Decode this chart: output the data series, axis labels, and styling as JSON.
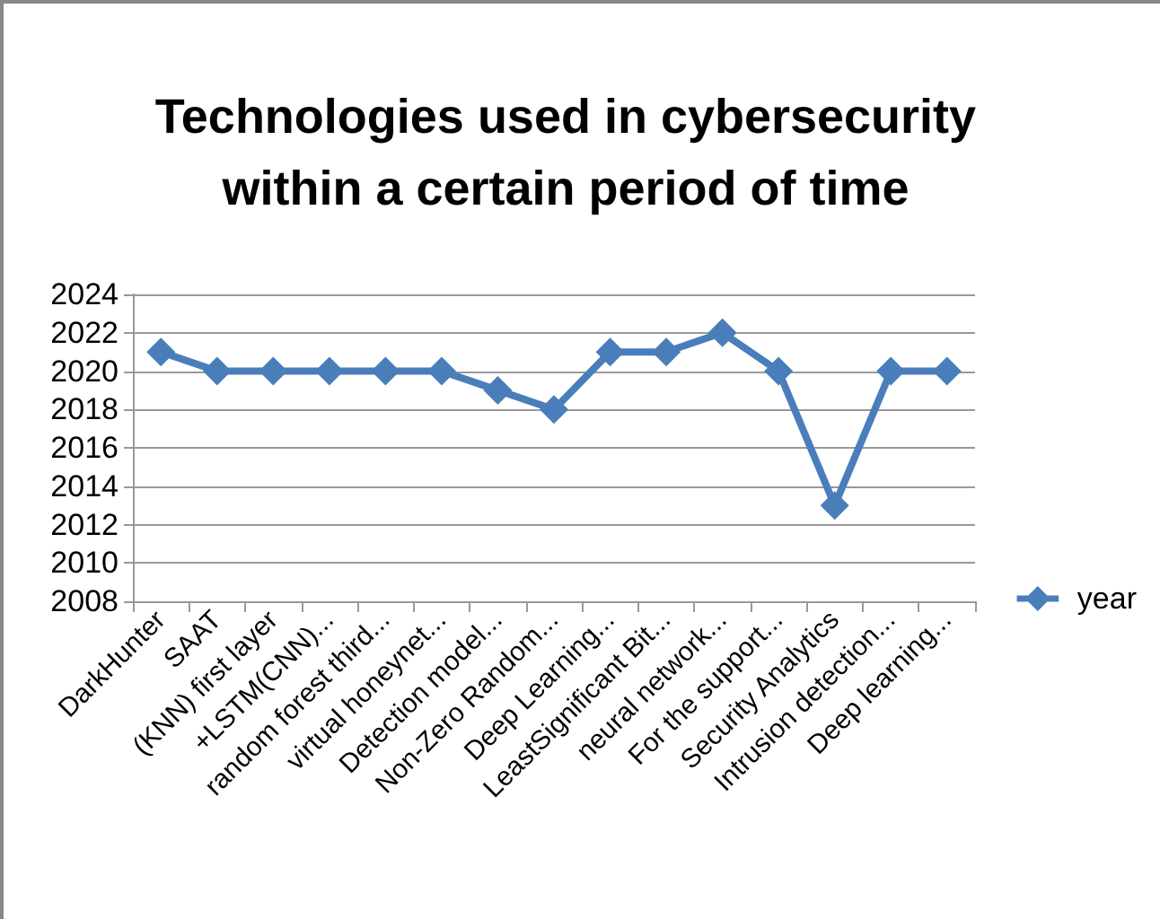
{
  "chart_data": {
    "type": "line",
    "title": "Technologies used in cybersecurity\nwithin a certain period of time",
    "categories": [
      "DarkHunter",
      "SAAT",
      "(KNN) first layer",
      "+LSTM(CNN)...",
      "random forest third...",
      "virtual honeynet...",
      "Detection model...",
      "Non-Zero Random...",
      "Deep Learning...",
      "LeastSignificant Bit...",
      "neural network...",
      "For the support...",
      "Security Analytics",
      "Intrusion detection...",
      "Deep learning..."
    ],
    "series": [
      {
        "name": "year",
        "color": "#4a7ebb",
        "values": [
          2021,
          2020,
          2020,
          2020,
          2020,
          2020,
          2019,
          2018,
          2021,
          2021,
          2022,
          2020,
          2013,
          2020,
          2020
        ]
      }
    ],
    "ylim": [
      2008,
      2024
    ],
    "yticks": [
      2008,
      2010,
      2012,
      2014,
      2016,
      2018,
      2020,
      2022,
      2024
    ],
    "grid": "y",
    "legend": "right",
    "marker": "diamond",
    "line_style": "solid"
  }
}
